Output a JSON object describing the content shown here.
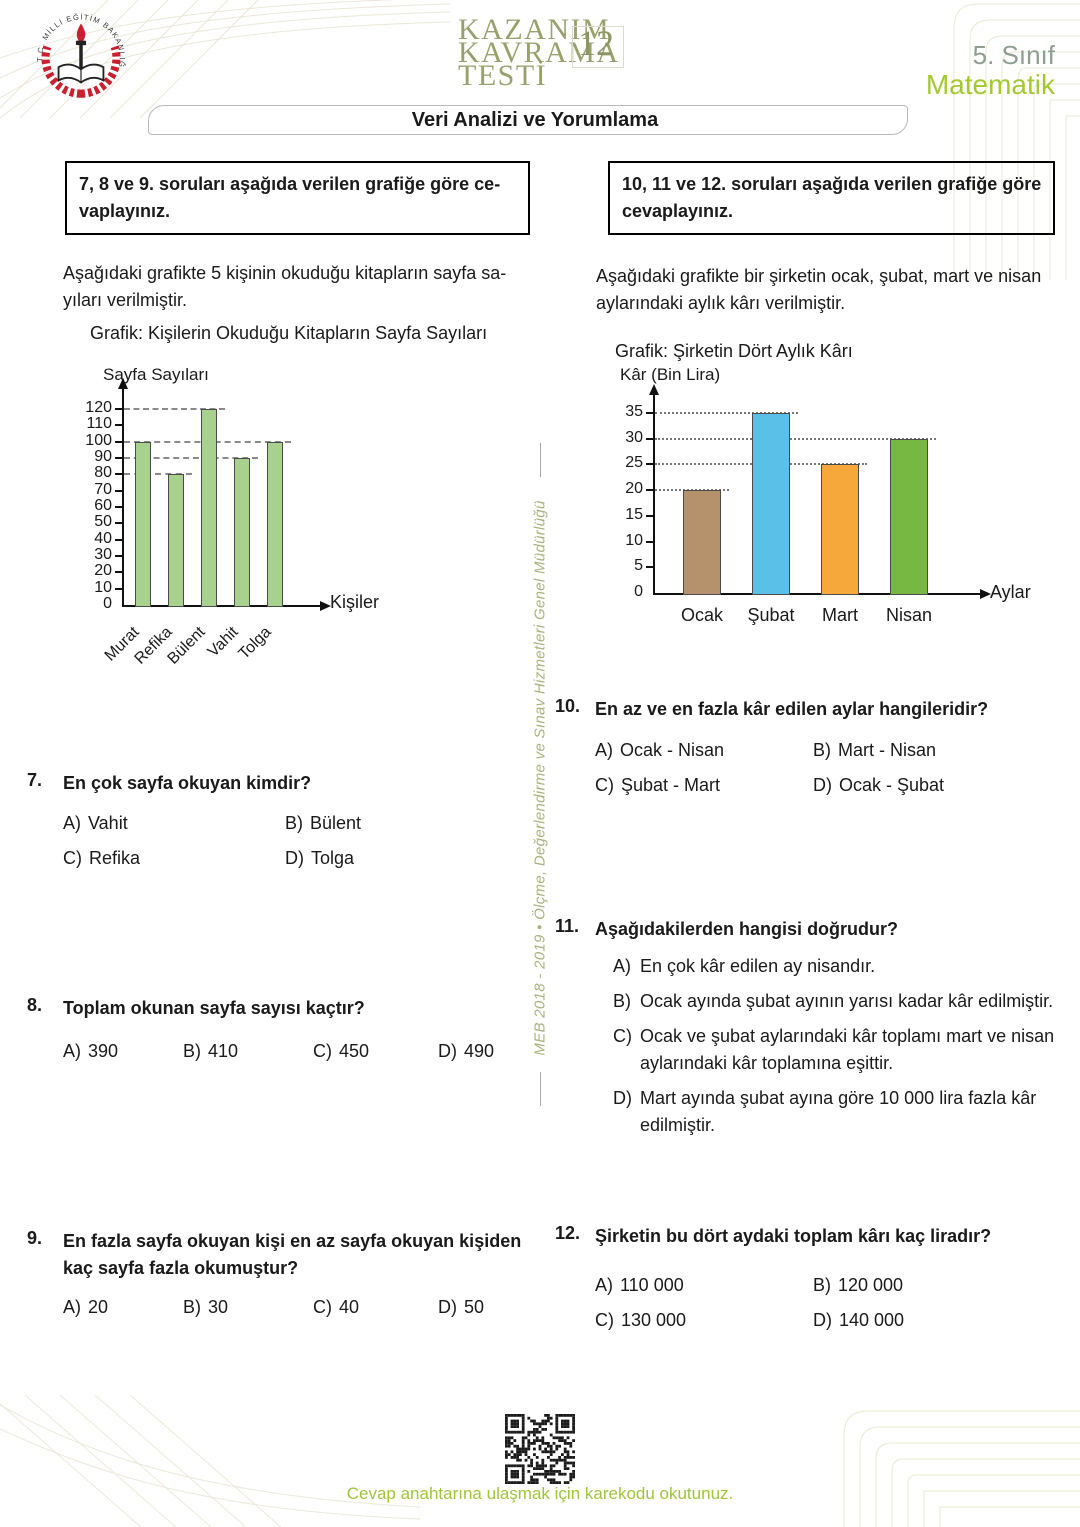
{
  "header": {
    "seal_text": "T.C. MİLLİ EĞİTİM BAKANLIĞI",
    "brand": {
      "line1": "KAZANIM",
      "line2": "KAVRAMA",
      "line3": "TESTİ",
      "number": "12"
    },
    "grade": "5. Sınıf",
    "subject": "Matematik",
    "topic": "Veri Analizi ve Yorumlama"
  },
  "side_note": "MEB  2018 - 2019    •    Ölçme, Değerlendirme ve Sınav Hizmetleri Genel Müdürlüğü",
  "left": {
    "box_line1": "7, 8 ve 9. soruları aşağıda verilen grafiğe göre ce-",
    "box_line2": "vaplayınız.",
    "intro_line1": "Aşağıdaki grafikte 5 kişinin okuduğu kitapların sayfa sa-",
    "intro_line2": "yıları verilmiştir."
  },
  "right": {
    "box_line1": "10, 11 ve 12. soruları aşağıda verilen grafiğe göre",
    "box_line2": "cevaplayınız.",
    "intro_line1": "Aşağıdaki grafikte bir şirketin ocak, şubat, mart ve nisan",
    "intro_line2": "aylarındaki aylık kârı verilmiştir."
  },
  "chart_data": [
    {
      "type": "bar",
      "title": "Grafik: Kişilerin Okuduğu Kitapların Sayfa Sayıları",
      "ylabel": "Sayfa Sayıları",
      "xlabel": "Kişiler",
      "categories": [
        "Murat",
        "Refika",
        "Bülent",
        "Vahit",
        "Tolga"
      ],
      "values": [
        100,
        80,
        120,
        90,
        100
      ],
      "yticks": [
        0,
        10,
        20,
        30,
        40,
        50,
        60,
        70,
        80,
        90,
        100,
        110,
        120
      ],
      "ylim": [
        0,
        130
      ],
      "grid": "partial horizontal guide lines at bar values",
      "grid_style": "dashed",
      "gridlines_at": [
        120,
        100,
        90,
        80
      ],
      "bar_color": "#a9d18e",
      "bar_border": "#4a4a4a",
      "legend": "none"
    },
    {
      "type": "bar",
      "title": "Grafik: Şirketin Dört Aylık Kârı",
      "ylabel": "Kâr (Bin Lira)",
      "xlabel": "Aylar",
      "categories": [
        "Ocak",
        "Şubat",
        "Mart",
        "Nisan"
      ],
      "values": [
        20,
        35,
        25,
        30
      ],
      "yticks": [
        0,
        5,
        10,
        15,
        20,
        25,
        30,
        35
      ],
      "ylim": [
        0,
        40
      ],
      "grid": "partial horizontal guide lines at bar values",
      "grid_style": "dotted",
      "gridlines_at": [
        35,
        30,
        25,
        20
      ],
      "bar_colors": [
        "#b5926b",
        "#5bc0e8",
        "#f7a83a",
        "#77b843"
      ],
      "bar_border": "#4a4a4a",
      "legend": "none"
    }
  ],
  "questions": [
    {
      "number": "7.",
      "text": "En çok sayfa okuyan kimdir?",
      "options": [
        {
          "letter": "A)",
          "text": "Vahit"
        },
        {
          "letter": "B)",
          "text": "Bülent"
        },
        {
          "letter": "C)",
          "text": "Refika"
        },
        {
          "letter": "D)",
          "text": "Tolga"
        }
      ]
    },
    {
      "number": "8.",
      "text": "Toplam okunan sayfa sayısı kaçtır?",
      "options": [
        {
          "letter": "A)",
          "text": "390"
        },
        {
          "letter": "B)",
          "text": "410"
        },
        {
          "letter": "C)",
          "text": "450"
        },
        {
          "letter": "D)",
          "text": "490"
        }
      ]
    },
    {
      "number": "9.",
      "text": "En fazla sayfa okuyan kişi en az sayfa okuyan kişiden kaç sayfa fazla okumuştur?",
      "options": [
        {
          "letter": "A)",
          "text": "20"
        },
        {
          "letter": "B)",
          "text": "30"
        },
        {
          "letter": "C)",
          "text": "40"
        },
        {
          "letter": "D)",
          "text": "50"
        }
      ]
    },
    {
      "number": "10.",
      "text": "En az ve en fazla kâr edilen aylar hangileridir?",
      "options": [
        {
          "letter": "A)",
          "text": "Ocak - Nisan"
        },
        {
          "letter": "B)",
          "text": "Mart - Nisan"
        },
        {
          "letter": "C)",
          "text": "Şubat - Mart"
        },
        {
          "letter": "D)",
          "text": "Ocak - Şubat"
        }
      ]
    },
    {
      "number": "11.",
      "text": "Aşağıdakilerden hangisi doğrudur?",
      "options": [
        {
          "letter": "A)",
          "text": "En çok kâr edilen ay nisandır."
        },
        {
          "letter": "B)",
          "text": "Ocak ayında şubat ayının yarısı kadar kâr edilmiştir."
        },
        {
          "letter": "C)",
          "text": "Ocak ve şubat aylarındaki kâr toplamı mart ve nisan aylarındaki kâr toplamına eşittir."
        },
        {
          "letter": "D)",
          "text": "Mart ayında şubat ayına göre 10 000 lira fazla kâr edilmiştir."
        }
      ]
    },
    {
      "number": "12.",
      "text": "Şirketin bu dört aydaki toplam kârı kaç liradır?",
      "options": [
        {
          "letter": "A)",
          "text": "110 000"
        },
        {
          "letter": "B)",
          "text": "120 000"
        },
        {
          "letter": "C)",
          "text": "130 000"
        },
        {
          "letter": "D)",
          "text": "140 000"
        }
      ]
    }
  ],
  "footer": {
    "qr_caption": "Cevap anahtarına ulaşmak için karekodu okutunuz."
  }
}
